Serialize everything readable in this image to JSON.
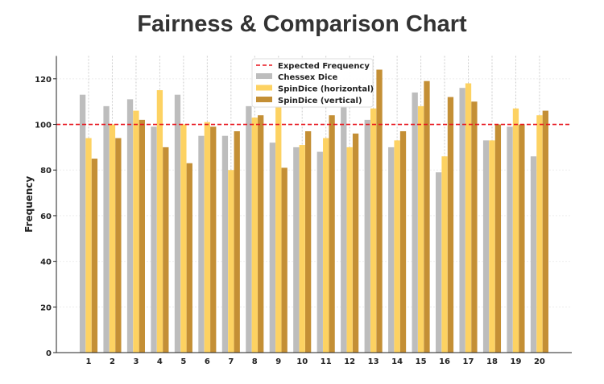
{
  "chart_data": {
    "type": "bar",
    "title": "Fairness & Comparison Chart",
    "xlabel": "",
    "ylabel": "Frequency",
    "ylim": [
      0,
      130
    ],
    "yticks": [
      0,
      20,
      40,
      60,
      80,
      100,
      120
    ],
    "grid": true,
    "legend_position": "top-center",
    "categories": [
      "1",
      "2",
      "3",
      "4",
      "5",
      "6",
      "7",
      "8",
      "9",
      "10",
      "11",
      "12",
      "13",
      "14",
      "15",
      "16",
      "17",
      "18",
      "19",
      "20"
    ],
    "reference_line": {
      "name": "Expected Frequency",
      "value": 100,
      "color": "#e8141c"
    },
    "series": [
      {
        "name": "Chessex Dice",
        "color": "#bdbdbd",
        "values": [
          113,
          108,
          111,
          99,
          113,
          95,
          95,
          108,
          92,
          90,
          88,
          108,
          102,
          90,
          114,
          79,
          116,
          93,
          99,
          86
        ]
      },
      {
        "name": "SpinDice (horizontal)",
        "color": "#fdd262",
        "values": [
          94,
          100,
          106,
          115,
          100,
          101,
          80,
          103,
          108,
          91,
          94,
          90,
          107,
          93,
          108,
          86,
          118,
          93,
          107,
          104
        ]
      },
      {
        "name": "SpinDice (vertical)",
        "color": "#c48f35",
        "values": [
          85,
          94,
          102,
          90,
          83,
          99,
          97,
          104,
          81,
          97,
          104,
          96,
          124,
          97,
          119,
          112,
          110,
          100,
          100,
          106
        ]
      }
    ]
  }
}
